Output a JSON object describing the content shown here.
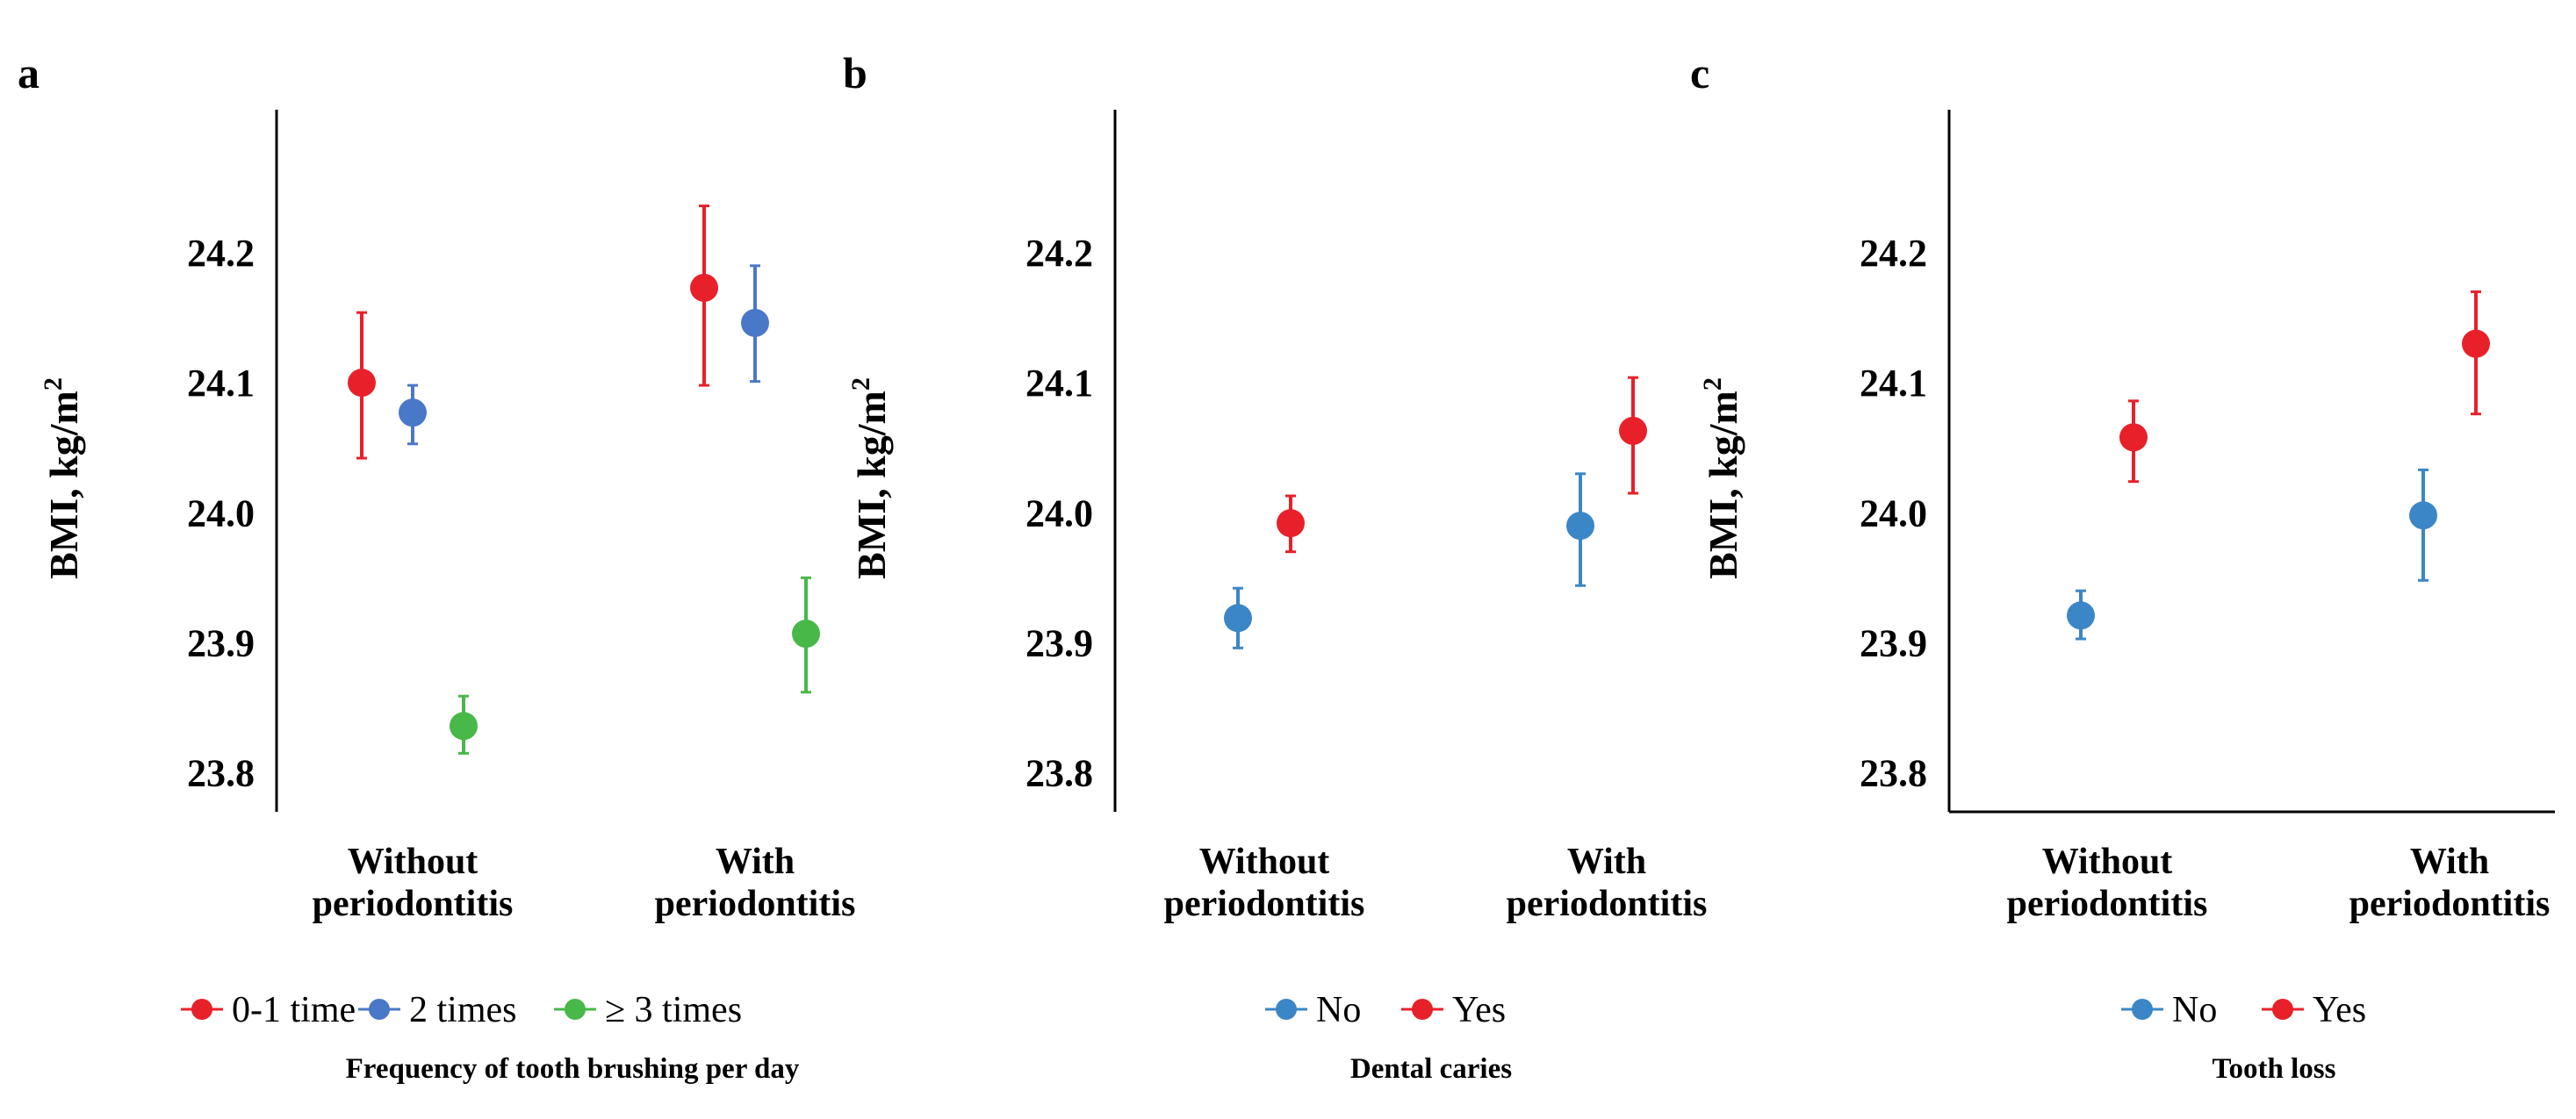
{
  "chart_data": [
    {
      "panel": "a",
      "type": "scatter",
      "ylabel": "BMI, kg/m",
      "ylabel_sup": "2",
      "ylim": [
        23.77,
        24.31
      ],
      "yticks": [
        "24.2",
        "24.1",
        "24.0",
        "23.9",
        "23.8"
      ],
      "categories": [
        [
          "Without",
          "periodontitis"
        ],
        [
          "With",
          "periodontitis"
        ]
      ],
      "legend_title": "Frequency of tooth brushing per day",
      "series": [
        {
          "name": "0-1 time",
          "color": "#e8202a",
          "values": [
            24.1,
            24.173
          ],
          "lower": [
            24.042,
            24.098
          ],
          "upper": [
            24.154,
            24.236
          ]
        },
        {
          "name": "2 times",
          "color": "#4a78c8",
          "values": [
            24.077,
            24.146
          ],
          "lower": [
            24.053,
            24.101
          ],
          "upper": [
            24.098,
            24.19
          ]
        },
        {
          "name": "≥ 3 times",
          "color": "#48b848",
          "values": [
            23.836,
            23.907
          ],
          "lower": [
            23.815,
            23.862
          ],
          "upper": [
            23.859,
            23.95
          ]
        }
      ]
    },
    {
      "panel": "b",
      "type": "scatter",
      "ylabel": "BMI, kg/m",
      "ylabel_sup": "2",
      "ylim": [
        23.77,
        24.31
      ],
      "yticks": [
        "24.2",
        "24.1",
        "24.0",
        "23.9",
        "23.8"
      ],
      "categories": [
        [
          "Without",
          "periodontitis"
        ],
        [
          "With",
          "periodontitis"
        ]
      ],
      "legend_title": "Dental caries",
      "series": [
        {
          "name": "No",
          "color": "#3b86c6",
          "values": [
            23.919,
            23.99
          ],
          "lower": [
            23.896,
            23.944
          ],
          "upper": [
            23.942,
            24.03
          ]
        },
        {
          "name": "Yes",
          "color": "#e8202a",
          "values": [
            23.992,
            24.063
          ],
          "lower": [
            23.97,
            24.015
          ],
          "upper": [
            24.013,
            24.104
          ]
        }
      ]
    },
    {
      "panel": "c",
      "type": "scatter",
      "ylabel": "BMI, kg/m",
      "ylabel_sup": "2",
      "ylim": [
        23.77,
        24.31
      ],
      "yticks": [
        "24.2",
        "24.1",
        "24.0",
        "23.9",
        "23.8"
      ],
      "categories": [
        [
          "Without",
          "periodontitis"
        ],
        [
          "With",
          "periodontitis"
        ]
      ],
      "legend_title": "Tooth loss",
      "series": [
        {
          "name": "No",
          "color": "#3b86c6",
          "values": [
            23.921,
            23.998
          ],
          "lower": [
            23.903,
            23.948
          ],
          "upper": [
            23.94,
            24.033
          ]
        },
        {
          "name": "Yes",
          "color": "#e8202a",
          "values": [
            24.058,
            24.13
          ],
          "lower": [
            24.024,
            24.076
          ],
          "upper": [
            24.086,
            24.17
          ]
        }
      ]
    }
  ]
}
